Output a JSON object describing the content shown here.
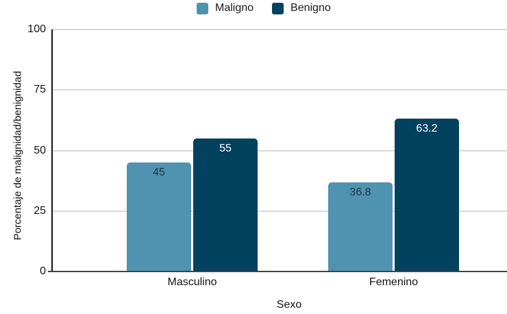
{
  "chart_data": {
    "type": "bar",
    "title": "",
    "categories": [
      "Masculino",
      "Femenino"
    ],
    "series": [
      {
        "name": "Maligno",
        "color": "#4F93B0",
        "label_color": "#1D3442",
        "values": [
          45,
          36.8
        ]
      },
      {
        "name": "Benigno",
        "color": "#03425E",
        "label_color": "#FFFFFF",
        "values": [
          55,
          63.2
        ]
      }
    ],
    "xlabel": "Sexo",
    "ylabel": "Porcentaje de malignidad/benignidad",
    "ylim": [
      0,
      100
    ],
    "y_ticks": [
      0,
      25,
      50,
      75,
      100
    ],
    "grid": true,
    "legend_position": "top",
    "colors": {
      "gridline": "#D9D9D9",
      "y_axis_line": "#111111",
      "x_axis_line": "#424242",
      "text": "#111111"
    }
  }
}
